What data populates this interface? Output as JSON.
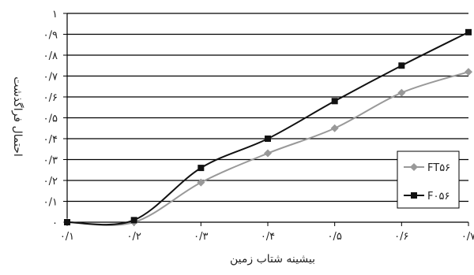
{
  "chart_data": {
    "type": "line",
    "xlabel": "بیشینه شتاب زمین",
    "ylabel": "احتمال فراگذشت",
    "x": [
      0.1,
      0.2,
      0.3,
      0.4,
      0.5,
      0.6,
      0.7
    ],
    "xlim": [
      0.1,
      0.7
    ],
    "ylim": [
      0,
      1
    ],
    "x_tick_labels": [
      "۰/۱",
      "۰/۲",
      "۰/۳",
      "۰/۴",
      "۰/۵",
      "۰/۶",
      "۰/۷"
    ],
    "y_ticks": [
      0,
      0.1,
      0.2,
      0.3,
      0.4,
      0.5,
      0.6,
      0.7,
      0.8,
      0.9,
      1
    ],
    "y_tick_labels": [
      "۰",
      "۰/۱",
      "۰/۲",
      "۰/۳",
      "۰/۴",
      "۰/۵",
      "۰/۶",
      "۰/۷",
      "۰/۸",
      "۰/۹",
      "۱"
    ],
    "grid": "horizontal",
    "legend_position": "lower-right",
    "series": [
      {
        "name": "FT۵۶",
        "values": [
          0.0,
          0.0,
          0.19,
          0.33,
          0.45,
          0.62,
          0.72
        ],
        "color": "#999999",
        "marker": "diamond"
      },
      {
        "name": "F۰۵۶",
        "values": [
          0.0,
          0.01,
          0.26,
          0.4,
          0.58,
          0.75,
          0.91
        ],
        "color": "#111111",
        "marker": "square"
      }
    ]
  }
}
